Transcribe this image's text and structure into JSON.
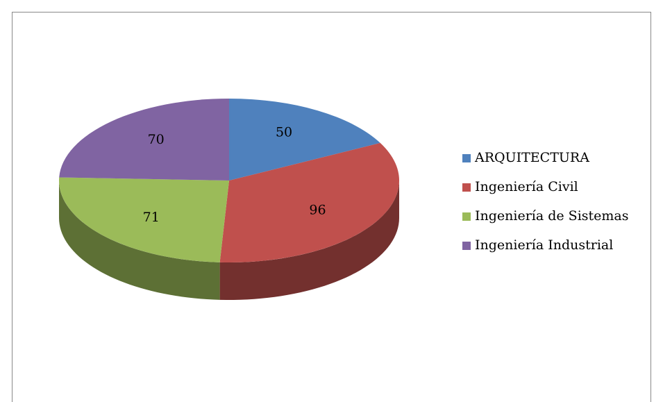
{
  "chart_data": {
    "type": "pie",
    "three_d": true,
    "categories": [
      "ARQUITECTURA",
      "Ingeniería Civil",
      "Ingeniería de Sistemas",
      "Ingeniería Industrial"
    ],
    "values": [
      50,
      96,
      71,
      70
    ],
    "colors": [
      "#4f81bd",
      "#c0504d",
      "#9bbb59",
      "#8064a2"
    ],
    "legend": "right"
  }
}
